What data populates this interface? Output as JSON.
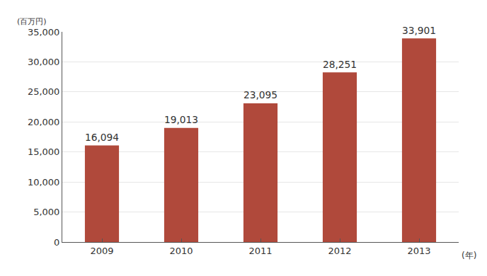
{
  "chart_data": {
    "type": "bar",
    "y_label": "(百万円)",
    "x_label": "(年)",
    "categories": [
      "2009",
      "2010",
      "2011",
      "2012",
      "2013"
    ],
    "values": [
      16094,
      19013,
      23095,
      28251,
      33901
    ],
    "value_labels": [
      "16,094",
      "19,013",
      "23,095",
      "28,251",
      "33,901"
    ],
    "data_labels": true,
    "color": "#b0493b",
    "ylim": [
      0,
      35000
    ],
    "yticks": [
      0,
      {
        "value": 5000,
        "label": "5,000"
      },
      {
        "value": 10000,
        "label": "10,000"
      },
      {
        "value": 15000,
        "label": "15,000"
      },
      {
        "value": 20000,
        "label": "20,000"
      },
      {
        "value": 25000,
        "label": "25,000"
      },
      {
        "value": 30000,
        "label": "30,000"
      },
      {
        "value": 35000,
        "label": "35,000"
      }
    ],
    "grid": true
  }
}
